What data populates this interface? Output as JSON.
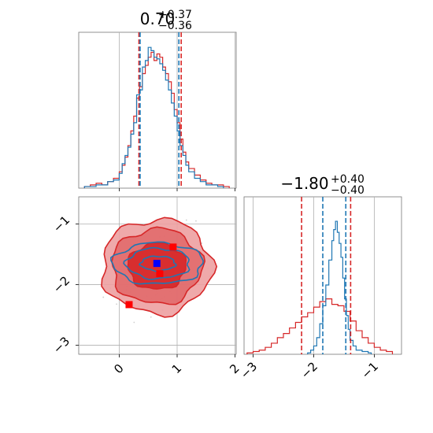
{
  "chart_data": {
    "type": "corner",
    "parameters": [
      "",
      ""
    ],
    "titles": [
      {
        "median": "0.70",
        "plus": "+0.37",
        "minus": "−0.36"
      },
      {
        "median": "−1.80",
        "plus": "+0.40",
        "minus": "−0.40"
      }
    ],
    "colors": {
      "red": "#d62728",
      "blue": "#1f77b4",
      "red_fill": "#eda0a1",
      "red_mid": "#e16a6b",
      "marker_red": "#ff0000",
      "marker_blue": "#0000ff",
      "grid": "#b0b0b0"
    },
    "grid": true,
    "axis_ranges": {
      "x0": [
        -0.7,
        2.02
      ],
      "x1": [
        -3.15,
        -0.55
      ]
    },
    "ticks": {
      "x0": [
        0,
        1,
        2
      ],
      "x0_labels": [
        "0",
        "1",
        "2"
      ],
      "x1": [
        -3,
        -2,
        -1
      ],
      "x1_labels": [
        "−3",
        "−2",
        "−1"
      ]
    },
    "hist_param0": {
      "red_quantiles": [
        0.34,
        1.07
      ],
      "blue_quantiles": [
        0.36,
        1.03
      ],
      "red_bins": [
        [
          -0.6,
          0.01
        ],
        [
          -0.5,
          0.02
        ],
        [
          -0.4,
          0.03
        ],
        [
          -0.3,
          0.02
        ],
        [
          -0.2,
          0.04
        ],
        [
          -0.1,
          0.06
        ],
        [
          0.0,
          0.1
        ],
        [
          0.05,
          0.14
        ],
        [
          0.1,
          0.19
        ],
        [
          0.15,
          0.26
        ],
        [
          0.2,
          0.35
        ],
        [
          0.25,
          0.44
        ],
        [
          0.3,
          0.55
        ],
        [
          0.35,
          0.62
        ],
        [
          0.4,
          0.7
        ],
        [
          0.45,
          0.75
        ],
        [
          0.5,
          0.8
        ],
        [
          0.55,
          0.83
        ],
        [
          0.6,
          0.78
        ],
        [
          0.65,
          0.82
        ],
        [
          0.7,
          0.8
        ],
        [
          0.75,
          0.74
        ],
        [
          0.8,
          0.7
        ],
        [
          0.85,
          0.65
        ],
        [
          0.9,
          0.58
        ],
        [
          0.95,
          0.48
        ],
        [
          1.0,
          0.4
        ],
        [
          1.05,
          0.3
        ],
        [
          1.1,
          0.22
        ],
        [
          1.15,
          0.16
        ],
        [
          1.2,
          0.12
        ],
        [
          1.3,
          0.08
        ],
        [
          1.4,
          0.05
        ],
        [
          1.5,
          0.03
        ],
        [
          1.6,
          0.02
        ],
        [
          1.8,
          0.01
        ]
      ],
      "blue_bins": [
        [
          -0.6,
          0.01
        ],
        [
          -0.5,
          0.01
        ],
        [
          -0.4,
          0.02
        ],
        [
          -0.3,
          0.02
        ],
        [
          -0.2,
          0.04
        ],
        [
          -0.1,
          0.05
        ],
        [
          0.0,
          0.09
        ],
        [
          0.05,
          0.15
        ],
        [
          0.1,
          0.2
        ],
        [
          0.15,
          0.25
        ],
        [
          0.2,
          0.33
        ],
        [
          0.25,
          0.4
        ],
        [
          0.3,
          0.57
        ],
        [
          0.35,
          0.6
        ],
        [
          0.4,
          0.74
        ],
        [
          0.45,
          0.78
        ],
        [
          0.5,
          0.86
        ],
        [
          0.55,
          0.84
        ],
        [
          0.6,
          0.8
        ],
        [
          0.65,
          0.79
        ],
        [
          0.7,
          0.76
        ],
        [
          0.75,
          0.72
        ],
        [
          0.8,
          0.66
        ],
        [
          0.85,
          0.6
        ],
        [
          0.9,
          0.52
        ],
        [
          0.95,
          0.44
        ],
        [
          1.0,
          0.35
        ],
        [
          1.05,
          0.26
        ],
        [
          1.1,
          0.2
        ],
        [
          1.15,
          0.14
        ],
        [
          1.2,
          0.1
        ],
        [
          1.3,
          0.06
        ],
        [
          1.4,
          0.04
        ],
        [
          1.5,
          0.02
        ],
        [
          1.7,
          0.01
        ]
      ]
    },
    "hist_param1": {
      "red_quantiles": [
        -2.2,
        -1.39
      ],
      "blue_quantiles": [
        -1.85,
        -1.47
      ],
      "red_bins": [
        [
          -3.1,
          0.01
        ],
        [
          -3.0,
          0.02
        ],
        [
          -2.9,
          0.03
        ],
        [
          -2.8,
          0.05
        ],
        [
          -2.7,
          0.08
        ],
        [
          -2.6,
          0.12
        ],
        [
          -2.5,
          0.15
        ],
        [
          -2.4,
          0.19
        ],
        [
          -2.3,
          0.23
        ],
        [
          -2.2,
          0.27
        ],
        [
          -2.1,
          0.3
        ],
        [
          -2.0,
          0.34
        ],
        [
          -1.9,
          0.38
        ],
        [
          -1.8,
          0.4
        ],
        [
          -1.7,
          0.36
        ],
        [
          -1.6,
          0.35
        ],
        [
          -1.5,
          0.31
        ],
        [
          -1.4,
          0.24
        ],
        [
          -1.3,
          0.17
        ],
        [
          -1.2,
          0.12
        ],
        [
          -1.1,
          0.08
        ],
        [
          -1.0,
          0.05
        ],
        [
          -0.9,
          0.03
        ],
        [
          -0.8,
          0.02
        ]
      ],
      "blue_bins": [
        [
          -2.1,
          0.01
        ],
        [
          -2.05,
          0.03
        ],
        [
          -2.0,
          0.06
        ],
        [
          -1.95,
          0.12
        ],
        [
          -1.9,
          0.22
        ],
        [
          -1.85,
          0.35
        ],
        [
          -1.8,
          0.5
        ],
        [
          -1.75,
          0.68
        ],
        [
          -1.7,
          0.82
        ],
        [
          -1.67,
          0.9
        ],
        [
          -1.64,
          0.96
        ],
        [
          -1.61,
          0.88
        ],
        [
          -1.58,
          0.8
        ],
        [
          -1.55,
          0.7
        ],
        [
          -1.52,
          0.55
        ],
        [
          -1.49,
          0.4
        ],
        [
          -1.46,
          0.28
        ],
        [
          -1.43,
          0.18
        ],
        [
          -1.4,
          0.1
        ],
        [
          -1.35,
          0.06
        ],
        [
          -1.3,
          0.03
        ],
        [
          -1.2,
          0.02
        ],
        [
          -1.1,
          0.01
        ]
      ]
    },
    "scatter_2d": {
      "red_center": [
        0.65,
        -1.7
      ],
      "blue_center": [
        0.67,
        -1.65
      ],
      "red_contours": [
        {
          "level": "outer",
          "rx": 0.95,
          "ry": 0.78
        },
        {
          "level": "mid",
          "rx": 0.78,
          "ry": 0.62
        },
        {
          "level": "inner",
          "rx": 0.5,
          "ry": 0.38
        }
      ],
      "blue_contours": [
        {
          "level": "outer",
          "rx": 0.78,
          "ry": 0.34
        },
        {
          "level": "mid",
          "rx": 0.55,
          "ry": 0.25
        },
        {
          "level": "inner",
          "rx": 0.3,
          "ry": 0.12
        }
      ],
      "red_markers": [
        [
          0.17,
          -2.33
        ],
        [
          0.93,
          -1.38
        ],
        [
          0.7,
          -1.82
        ]
      ],
      "blue_markers": [
        [
          0.65,
          -1.65
        ]
      ]
    }
  }
}
